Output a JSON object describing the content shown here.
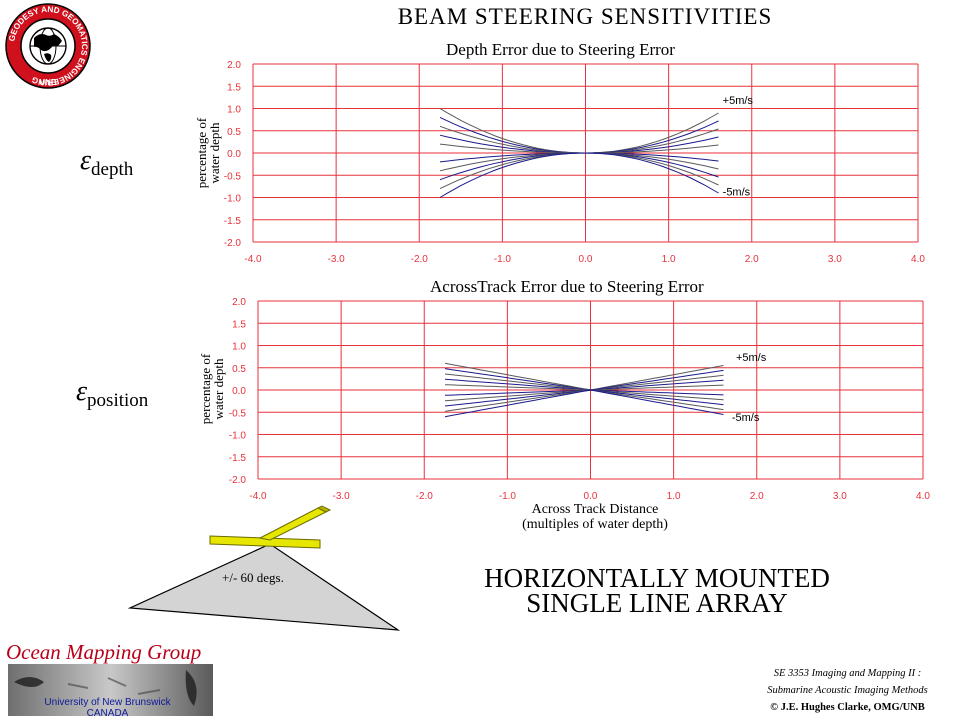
{
  "header": {
    "title": "BEAM  STEERING  SENSITIVITIES"
  },
  "logo": {
    "ring_text": "GEODESY AND GEOMATICS ENGINEERING",
    "bottom_text": "UNB"
  },
  "symbols": {
    "depth_base": "ε",
    "depth_sub": "depth",
    "position_base": "ε",
    "position_sub": "position"
  },
  "chart_data": [
    {
      "type": "line",
      "title": "Depth  Error  due  to  Steering  Error",
      "ylabel_line1": "percentage  of",
      "ylabel_line2": "water  depth",
      "xlabel": "",
      "xlim": [
        -4.0,
        4.0
      ],
      "ylim": [
        -2.0,
        2.0
      ],
      "xticks": [
        "-4.0",
        "-3.0",
        "-2.0",
        "-1.0",
        "0.0",
        "1.0",
        "2.0",
        "3.0",
        "4.0"
      ],
      "yticks": [
        "2.0",
        "1.5",
        "1.0",
        "0.5",
        "0.0",
        "-0.5",
        "-1.0",
        "-1.5",
        "-2.0"
      ],
      "grid": true,
      "x_range": [
        -1.75,
        1.6
      ],
      "curve": "quadratic",
      "series_end_values_left": [
        1.0,
        0.8,
        0.6,
        0.4,
        0.2,
        -0.2,
        -0.4,
        -0.6,
        -0.8,
        -1.0
      ],
      "series_end_values_right": [
        0.9,
        0.72,
        0.54,
        0.36,
        0.18,
        -0.18,
        -0.36,
        -0.54,
        -0.72,
        -0.9
      ],
      "annotations": [
        {
          "text": "+5m/s",
          "x": 1.65,
          "y": 1.1
        },
        {
          "text": "-5m/s",
          "x": 1.65,
          "y": -0.95
        }
      ],
      "colors": {
        "grid": "#e8323c",
        "lines": [
          "#5a5a5a",
          "#1a1a8c"
        ]
      }
    },
    {
      "type": "line",
      "title": "AcrossTrack  Error  due  to  Steering  Error",
      "ylabel_line1": "percentage  of",
      "ylabel_line2": "water  depth",
      "xlabel_line1": "Across  Track  Distance",
      "xlabel_line2": "(multiples  of  water  depth)",
      "xlim": [
        -4.0,
        4.0
      ],
      "ylim": [
        -2.0,
        2.0
      ],
      "xticks": [
        "-4.0",
        "-3.0",
        "-2.0",
        "-1.0",
        "0.0",
        "1.0",
        "2.0",
        "3.0",
        "4.0"
      ],
      "yticks": [
        "2.0",
        "1.5",
        "1.0",
        "0.5",
        "0.0",
        "-0.5",
        "-1.0",
        "-1.5",
        "-2.0"
      ],
      "grid": true,
      "x_range": [
        -1.75,
        1.6
      ],
      "curve": "linear",
      "series_end_values_left": [
        0.6,
        0.48,
        0.36,
        0.24,
        0.12,
        -0.12,
        -0.24,
        -0.36,
        -0.48,
        -0.6
      ],
      "series_end_values_right": [
        0.55,
        0.44,
        0.33,
        0.22,
        0.11,
        -0.11,
        -0.22,
        -0.33,
        -0.44,
        -0.55
      ],
      "annotations": [
        {
          "text": "+5m/s",
          "x": 1.75,
          "y": 0.65
        },
        {
          "text": "-5m/s",
          "x": 1.7,
          "y": -0.7
        }
      ],
      "colors": {
        "grid": "#e8323c",
        "lines": [
          "#5a5a5a",
          "#1a1a8c"
        ]
      }
    }
  ],
  "array": {
    "angle_label": "+/-  60  degs.",
    "label_line1": "HORIZONTALLY  MOUNTED",
    "label_line2": "SINGLE  LINE  ARRAY",
    "array_color": "#e6e600",
    "fan_color": "#d4d4d4"
  },
  "footer": {
    "omg_title": "Ocean Mapping Group",
    "omg_univ": "University of New Brunswick",
    "omg_country": "CANADA",
    "course_line1": "SE 3353 Imaging and Mapping II :",
    "course_line2": "Submarine Acoustic Imaging Methods",
    "copyright": "© J.E. Hughes Clarke, OMG/UNB"
  }
}
